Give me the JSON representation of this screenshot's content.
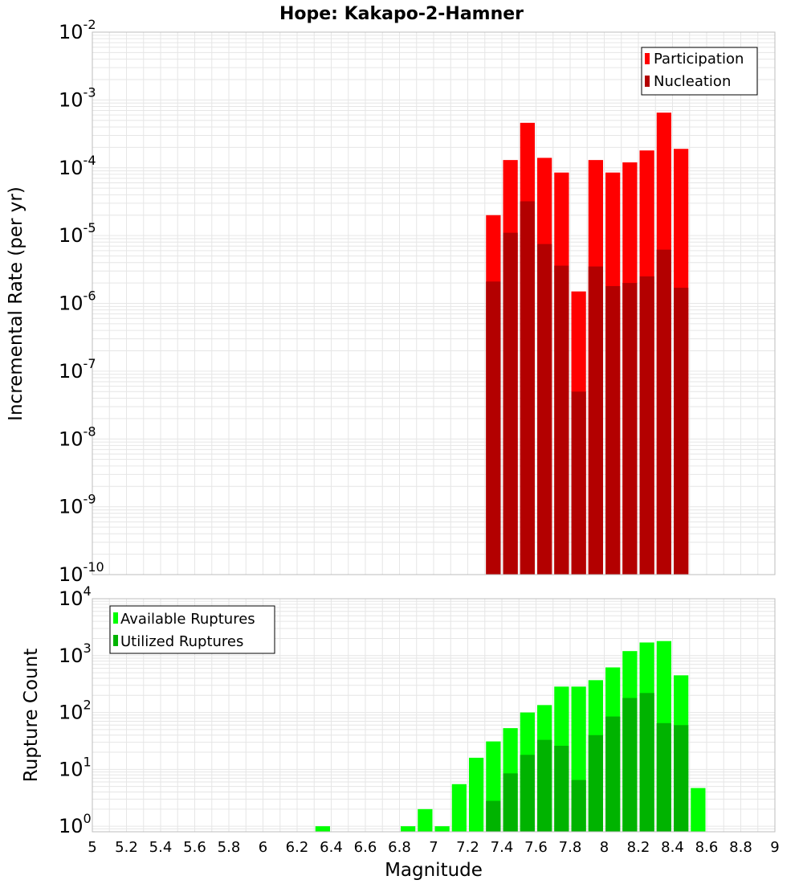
{
  "title": "Hope: Kakapo-2-Hamner",
  "chart_data": [
    {
      "type": "bar",
      "ylabel": "Incremental Rate (per yr)",
      "yscale": "log",
      "ylim": [
        1e-10,
        0.01
      ],
      "xlim": [
        5,
        9
      ],
      "bar_width": 0.1,
      "x": [
        7.35,
        7.45,
        7.55,
        7.65,
        7.75,
        7.85,
        7.95,
        8.05,
        8.15,
        8.25,
        8.35,
        8.45
      ],
      "grid": true,
      "legend_position": "top-right",
      "series": [
        {
          "name": "Participation",
          "color": "#ff0000",
          "values": [
            2e-05,
            0.00013,
            0.00046,
            0.00014,
            8.5e-05,
            1.5e-06,
            0.00013,
            8.5e-05,
            0.00012,
            0.00018,
            0.00065,
            0.00019
          ]
        },
        {
          "name": "Nucleation",
          "color": "#b30000",
          "values": [
            2.1e-06,
            1.1e-05,
            3.2e-05,
            7.5e-06,
            3.6e-06,
            5e-08,
            3.5e-06,
            1.8e-06,
            2e-06,
            2.5e-06,
            6.2e-06,
            1.7e-06
          ]
        }
      ]
    },
    {
      "type": "bar",
      "xlabel": "Magnitude",
      "ylabel": "Rupture Count",
      "yscale": "log",
      "ylim": [
        0.8,
        10000
      ],
      "xlim": [
        5,
        9
      ],
      "bar_width": 0.1,
      "x": [
        6.35,
        6.85,
        6.95,
        7.05,
        7.15,
        7.25,
        7.35,
        7.45,
        7.55,
        7.65,
        7.75,
        7.85,
        7.95,
        8.05,
        8.15,
        8.25,
        8.35,
        8.45,
        8.55
      ],
      "grid": true,
      "legend_position": "top-left",
      "series": [
        {
          "name": "Available Ruptures",
          "color": "#00ff00",
          "values": [
            1,
            1,
            2,
            1,
            5.5,
            16,
            31,
            53,
            100,
            135,
            285,
            285,
            370,
            620,
            1200,
            1700,
            1800,
            450,
            4.7
          ]
        },
        {
          "name": "Utilized Ruptures",
          "color": "#00b300",
          "values": [
            null,
            null,
            null,
            null,
            null,
            null,
            2.8,
            8.5,
            18,
            33,
            26,
            6.5,
            40,
            85,
            180,
            220,
            65,
            60,
            null
          ]
        }
      ]
    }
  ],
  "x_ticks": [
    "5",
    "5.2",
    "5.4",
    "5.6",
    "5.8",
    "6",
    "6.2",
    "6.4",
    "6.6",
    "6.8",
    "7",
    "7.2",
    "7.4",
    "7.6",
    "7.8",
    "8",
    "8.2",
    "8.4",
    "8.6",
    "8.8",
    "9"
  ],
  "top_y_ticks": [
    {
      "base": "10",
      "exp": "-10",
      "value": 1e-10
    },
    {
      "base": "10",
      "exp": "-9",
      "value": 1e-09
    },
    {
      "base": "10",
      "exp": "-8",
      "value": 1e-08
    },
    {
      "base": "10",
      "exp": "-7",
      "value": 1e-07
    },
    {
      "base": "10",
      "exp": "-6",
      "value": 1e-06
    },
    {
      "base": "10",
      "exp": "-5",
      "value": 1e-05
    },
    {
      "base": "10",
      "exp": "-4",
      "value": 0.0001
    },
    {
      "base": "10",
      "exp": "-3",
      "value": 0.001
    },
    {
      "base": "10",
      "exp": "-2",
      "value": 0.01
    }
  ],
  "bottom_y_ticks": [
    {
      "base": "10",
      "exp": "0",
      "value": 1
    },
    {
      "base": "10",
      "exp": "1",
      "value": 10
    },
    {
      "base": "10",
      "exp": "2",
      "value": 100
    },
    {
      "base": "10",
      "exp": "3",
      "value": 1000
    },
    {
      "base": "10",
      "exp": "4",
      "value": 10000
    }
  ]
}
